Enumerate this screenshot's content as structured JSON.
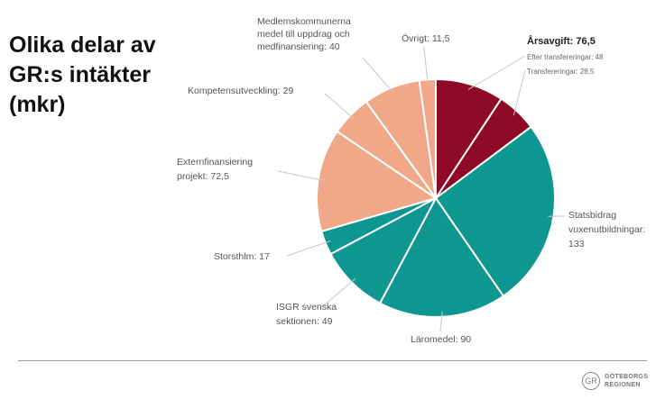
{
  "title_lines": [
    "Olika delar av",
    "GR:s intäkter",
    "(mkr)"
  ],
  "colors": {
    "red": "#8e0a26",
    "teal": "#0e9690",
    "salmon": "#f0a888",
    "text": "#555555",
    "leader": "#c8c8c8"
  },
  "chart_data": {
    "type": "pie",
    "unit": "mkr",
    "slices": [
      {
        "label": "Efter transfereringar",
        "value": 48,
        "color": "red",
        "text": "Efter transfereringar: 48"
      },
      {
        "label": "Transfereringar",
        "value": 28.5,
        "color": "red",
        "text": "Transfereringar: 28,5"
      },
      {
        "label": "Statsbidrag vuxenutbildningar",
        "value": 133,
        "color": "teal",
        "text": "Statsbidrag vuxenutbildningar: 133"
      },
      {
        "label": "Läromedel",
        "value": 90,
        "color": "teal",
        "text": "Läromedel: 90"
      },
      {
        "label": "ISGR svenska sektionen",
        "value": 49,
        "color": "teal",
        "text": "ISGR svenska sektionen: 49"
      },
      {
        "label": "Storsthlm",
        "value": 17,
        "color": "teal",
        "text": "Storsthlm: 17"
      },
      {
        "label": "Externfinansiering projekt",
        "value": 72.5,
        "color": "salmon",
        "text": "Externfinansiering projekt: 72,5"
      },
      {
        "label": "Kompetensutveckling",
        "value": 29,
        "color": "salmon",
        "text": "Kompetensutveckling: 29"
      },
      {
        "label": "Medlemskommunerna medel till uppdrag och medfinansiering",
        "value": 40,
        "color": "salmon",
        "text": "Medlemskommunerna medel till uppdrag och medfinansiering: 40"
      },
      {
        "label": "Övrigt",
        "value": 11.5,
        "color": "salmon",
        "text": "Övrigt: 11,5"
      }
    ],
    "group_label": "Årsavgift: 76,5"
  },
  "labels": {
    "arsavgift": "Årsavgift: 76,5",
    "efter": "Efter transfereringar: 48",
    "transf": "Transfereringar: 28,5",
    "stats": [
      "Statsbidrag",
      "vuxenutbildningar:",
      "133"
    ],
    "laromedel": "Läromedel: 90",
    "isgr": [
      "ISGR svenska",
      "sektionen: 49"
    ],
    "storsthlm": "Storsthlm: 17",
    "extern": [
      "Externfinansiering",
      "projekt: 72,5"
    ],
    "kompetens": "Kompetensutveckling: 29",
    "medlems": [
      "Medlemskommunerna",
      "medel till uppdrag och",
      "medfinansiering: 40"
    ],
    "ovrigt": "Övrigt: 11,5"
  },
  "logo": {
    "mark": "GR",
    "line1": "GÖTEBORGS",
    "line2": "REGIONEN"
  }
}
